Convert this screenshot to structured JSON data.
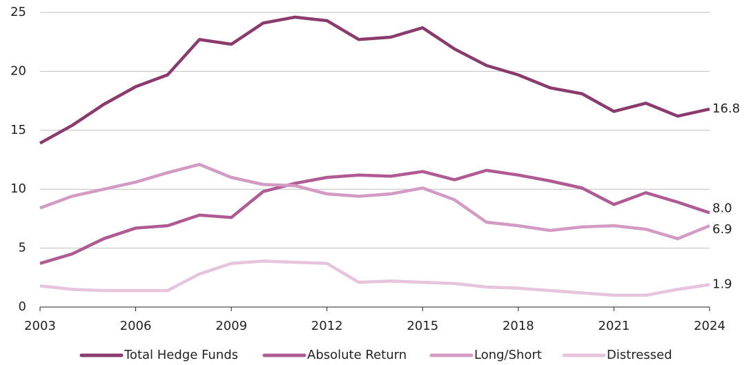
{
  "chart_data": {
    "type": "line",
    "x": [
      2003,
      2004,
      2005,
      2006,
      2007,
      2008,
      2009,
      2010,
      2011,
      2012,
      2013,
      2014,
      2015,
      2016,
      2017,
      2018,
      2019,
      2020,
      2021,
      2022,
      2023,
      2024
    ],
    "xlim": [
      2003,
      2024
    ],
    "xticks": [
      2003,
      2006,
      2009,
      2012,
      2015,
      2018,
      2021,
      2024
    ],
    "ylim": [
      0,
      25
    ],
    "yticks": [
      0,
      5,
      10,
      15,
      20,
      25
    ],
    "grid": true,
    "series": [
      {
        "name": "Total Hedge Funds",
        "color": "#8b3a6e",
        "values": [
          13.9,
          15.4,
          17.2,
          18.7,
          19.7,
          22.7,
          22.3,
          24.1,
          24.6,
          24.3,
          22.7,
          22.9,
          23.7,
          21.9,
          20.5,
          19.7,
          18.6,
          18.1,
          16.6,
          17.3,
          16.2,
          16.8
        ],
        "value_labels": [
          null,
          null,
          null,
          null,
          null,
          null,
          null,
          null,
          null,
          null,
          null,
          null,
          null,
          null,
          null,
          null,
          null,
          null,
          null,
          null,
          null,
          "16.8"
        ]
      },
      {
        "name": "Absolute Return",
        "color": "#b05a93",
        "values": [
          3.7,
          4.5,
          5.8,
          6.7,
          6.9,
          7.8,
          7.6,
          9.8,
          10.5,
          11.0,
          11.2,
          11.1,
          11.5,
          10.8,
          11.6,
          11.2,
          10.7,
          10.1,
          8.7,
          9.7,
          8.9,
          8.0
        ],
        "value_labels": [
          null,
          null,
          null,
          null,
          null,
          null,
          null,
          null,
          null,
          null,
          null,
          null,
          null,
          null,
          null,
          null,
          null,
          null,
          null,
          null,
          null,
          "8.0"
        ]
      },
      {
        "name": "Long/Short",
        "color": "#d39ac3",
        "values": [
          8.4,
          9.4,
          10.0,
          10.6,
          11.4,
          12.1,
          11.0,
          10.4,
          10.3,
          9.6,
          9.4,
          9.6,
          10.1,
          9.1,
          7.2,
          6.9,
          6.5,
          6.8,
          6.9,
          6.6,
          5.8,
          6.9
        ],
        "value_labels": [
          null,
          null,
          null,
          null,
          null,
          null,
          null,
          null,
          null,
          null,
          null,
          null,
          null,
          null,
          null,
          null,
          null,
          null,
          null,
          null,
          null,
          "6.9"
        ]
      },
      {
        "name": "Distressed",
        "color": "#e7c3dc",
        "values": [
          1.8,
          1.5,
          1.4,
          1.4,
          1.4,
          2.8,
          3.7,
          3.9,
          3.8,
          3.7,
          2.1,
          2.2,
          2.1,
          2.0,
          1.7,
          1.6,
          1.4,
          1.2,
          1.0,
          1.0,
          1.5,
          1.9
        ],
        "value_labels": [
          null,
          null,
          null,
          null,
          null,
          null,
          null,
          null,
          null,
          null,
          null,
          null,
          null,
          null,
          null,
          null,
          null,
          null,
          null,
          null,
          null,
          "1.9"
        ]
      }
    ]
  }
}
